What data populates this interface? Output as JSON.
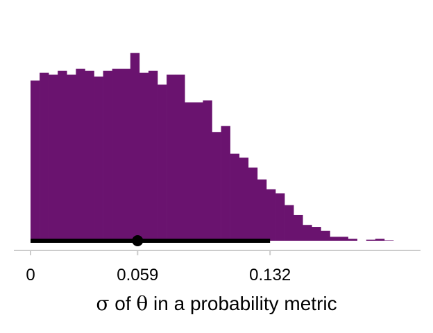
{
  "chart_data": {
    "type": "histogram",
    "xlabel_parts": [
      {
        "text": "σ",
        "sym": true
      },
      {
        "text": " of ",
        "sym": false
      },
      {
        "text": "θ",
        "sym": true
      },
      {
        "text": " in a probability metric",
        "sym": false
      }
    ],
    "ylabel": "",
    "title": "",
    "xlim": [
      0,
      0.2
    ],
    "ylim": [
      0,
      1.0
    ],
    "bin_width": 0.005,
    "bins_start": 0,
    "counts": [
      0.81,
      0.85,
      0.84,
      0.86,
      0.84,
      0.87,
      0.86,
      0.83,
      0.86,
      0.87,
      0.87,
      0.95,
      0.85,
      0.86,
      0.79,
      0.84,
      0.84,
      0.7,
      0.7,
      0.71,
      0.55,
      0.58,
      0.44,
      0.42,
      0.37,
      0.31,
      0.26,
      0.24,
      0.18,
      0.13,
      0.08,
      0.07,
      0.05,
      0.02,
      0.02,
      0.01,
      0.0,
      0.005,
      0.01,
      0.002
    ],
    "x_ticks": [
      0,
      0.059,
      0.132
    ],
    "x_tick_labels": [
      "0",
      "0.059",
      "0.132"
    ],
    "interval": {
      "low": 0,
      "high": 0.132,
      "point": 0.059
    },
    "colors": {
      "bars": "#6a136f",
      "interval": "#000000",
      "axis": "#cccccc"
    },
    "grid": false,
    "legend": "none"
  }
}
